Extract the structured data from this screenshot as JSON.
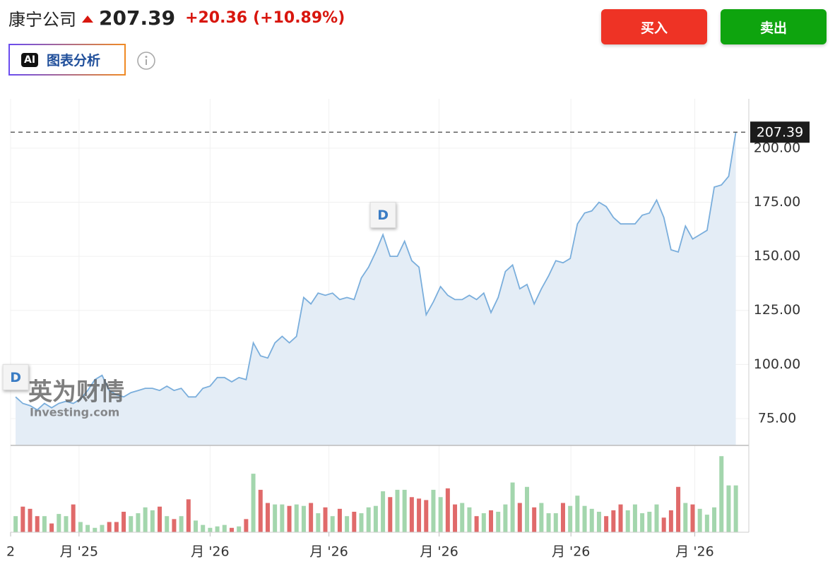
{
  "header": {
    "name": "康宁公司",
    "price": "207.39",
    "change": "+20.36",
    "change_pct": "(+10.89%)",
    "buy": "买入",
    "sell": "卖出",
    "ai_badge": "AI",
    "ai_label": "图表分析"
  },
  "chart_data": [
    {
      "type": "line",
      "series": [
        {
          "color": "#7aaedc",
          "fill_color": "#e4edf6",
          "values": [
            85,
            82,
            81,
            79,
            82,
            80,
            82,
            83,
            82,
            84,
            88,
            93,
            95,
            88,
            86,
            85,
            87,
            88,
            89,
            89,
            88,
            90,
            88,
            89,
            85,
            85,
            89,
            90,
            94,
            94,
            92,
            94,
            93,
            110,
            104,
            103,
            110,
            113,
            110,
            113,
            131,
            128,
            133,
            132,
            133,
            130,
            131,
            130,
            140,
            145,
            152,
            160,
            150,
            150,
            157,
            148,
            145,
            123,
            129,
            136,
            132,
            130,
            130,
            132,
            130,
            133,
            124,
            131,
            143,
            146,
            135,
            137,
            128,
            135,
            141,
            148,
            147,
            149,
            165,
            170,
            171,
            175,
            173,
            168,
            165,
            165,
            165,
            169,
            170,
            176,
            168,
            153,
            152,
            164,
            158,
            160,
            162,
            182,
            183,
            187,
            207.39
          ]
        }
      ],
      "xlim": [
        -0.7,
        101.8
      ],
      "xticks": [
        {
          "value": -0.7,
          "label": "2"
        },
        {
          "value": 8.8,
          "label": "月 '25"
        },
        {
          "value": 27,
          "label": "月 '26"
        },
        {
          "value": 43.5,
          "label": "月 '26"
        },
        {
          "value": 58.8,
          "label": "月 '26"
        },
        {
          "value": 77.1,
          "label": "月 '26"
        },
        {
          "value": 94.3,
          "label": "月 '26"
        }
      ],
      "ylim": [
        62.6,
        222.8
      ],
      "yticks": [
        {
          "value": 75,
          "label": "75.00"
        },
        {
          "value": 100,
          "label": "100.00"
        },
        {
          "value": 125,
          "label": "125.00"
        },
        {
          "value": 150,
          "label": "150.00"
        },
        {
          "value": 175,
          "label": "175.00"
        },
        {
          "value": 200,
          "label": "200.00"
        }
      ],
      "last_price": {
        "value": 207.39,
        "label": "207.39"
      },
      "markers": [
        {
          "x": 0,
          "label": "D"
        },
        {
          "x": 51,
          "label": "D"
        }
      ],
      "watermark": [
        "英为财情",
        "Investing.com"
      ],
      "grid": true
    },
    {
      "type": "bar",
      "values": [
        22,
        35,
        32,
        22,
        22,
        12,
        25,
        22,
        38,
        14,
        10,
        6,
        10,
        14,
        14,
        28,
        22,
        26,
        34,
        30,
        35,
        22,
        18,
        22,
        45,
        16,
        10,
        6,
        8,
        10,
        6,
        8,
        18,
        80,
        58,
        40,
        38,
        38,
        36,
        38,
        36,
        40,
        26,
        34,
        22,
        32,
        22,
        28,
        26,
        34,
        36,
        56,
        48,
        58,
        58,
        48,
        46,
        44,
        58,
        48,
        60,
        38,
        40,
        34,
        22,
        26,
        30,
        28,
        38,
        68,
        40,
        62,
        34,
        40,
        26,
        26,
        40,
        36,
        50,
        36,
        32,
        28,
        22,
        30,
        38,
        30,
        38,
        26,
        28,
        38,
        20,
        30,
        62,
        40,
        38,
        32,
        24,
        34,
        104,
        64,
        64
      ],
      "ylim": [
        0,
        110
      ],
      "color_up": "#a3d6ad",
      "color_down": "#e06a6a"
    }
  ]
}
